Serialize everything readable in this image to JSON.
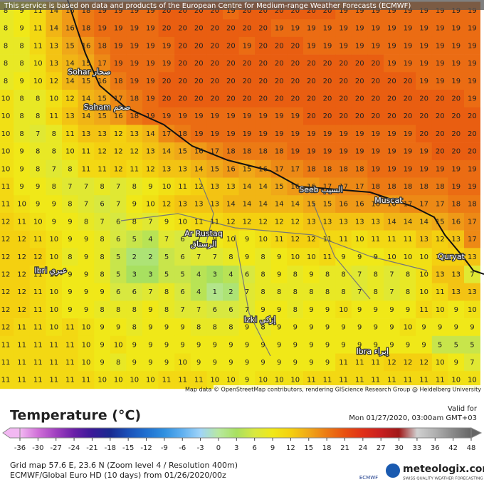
{
  "header": {
    "notice": "This service is based on data and products of the European Centre for Medium-range Weather Forecasts (ECMWF)"
  },
  "map": {
    "attribution": "Map data © OpenStreetMap contributors, rendering GIScience Research Group @ Heidelberg University",
    "places": [
      {
        "label": "Sohar صحار",
        "col": 5.2,
        "row": 3.5
      },
      {
        "label": "Saham صحم",
        "col": 6.3,
        "row": 5.5
      },
      {
        "label": "Ar Rustaq",
        "col": 12.3,
        "row": 12.7
      },
      {
        "label": "الرستاق",
        "col": 12.3,
        "row": 13.3
      },
      {
        "label": "Ibri عبري",
        "col": 2.8,
        "row": 14.8
      },
      {
        "label": "Izki إزكي",
        "col": 15.8,
        "row": 17.6
      },
      {
        "label": "Seeb السيب",
        "col": 19.6,
        "row": 10.2
      },
      {
        "label": "Muscat",
        "col": 23.8,
        "row": 10.8
      },
      {
        "label": "Quryat",
        "col": 27.7,
        "row": 14.0
      },
      {
        "label": "Ibra إبراء",
        "col": 22.8,
        "row": 19.4
      }
    ],
    "rows": [
      [
        8,
        9,
        11,
        14,
        16,
        18,
        19,
        19,
        19,
        19,
        20,
        20,
        20,
        20,
        19,
        20,
        20,
        20,
        20,
        20,
        20,
        19,
        19,
        19,
        19,
        19,
        19,
        19,
        19,
        19
      ],
      [
        8,
        9,
        11,
        14,
        16,
        18,
        19,
        19,
        19,
        19,
        20,
        20,
        20,
        20,
        20,
        20,
        20,
        19,
        19,
        19,
        19,
        19,
        19,
        19,
        19,
        19,
        19,
        19,
        19,
        19
      ],
      [
        8,
        8,
        11,
        13,
        15,
        16,
        18,
        19,
        19,
        19,
        19,
        20,
        20,
        20,
        20,
        19,
        20,
        20,
        20,
        19,
        19,
        19,
        19,
        19,
        19,
        19,
        19,
        19,
        19,
        19
      ],
      [
        8,
        8,
        10,
        13,
        14,
        15,
        17,
        19,
        19,
        19,
        19,
        20,
        20,
        20,
        20,
        20,
        20,
        20,
        20,
        20,
        20,
        20,
        20,
        20,
        19,
        19,
        19,
        19,
        19,
        19
      ],
      [
        8,
        9,
        10,
        12,
        14,
        15,
        16,
        18,
        19,
        19,
        20,
        20,
        20,
        20,
        20,
        20,
        20,
        20,
        20,
        20,
        20,
        20,
        20,
        20,
        20,
        20,
        19,
        19,
        19,
        19
      ],
      [
        10,
        8,
        8,
        10,
        12,
        14,
        15,
        17,
        18,
        19,
        20,
        20,
        20,
        20,
        20,
        20,
        20,
        20,
        20,
        20,
        20,
        20,
        20,
        20,
        20,
        20,
        20,
        20,
        20,
        19
      ],
      [
        10,
        8,
        8,
        11,
        13,
        14,
        15,
        16,
        18,
        19,
        19,
        19,
        19,
        19,
        19,
        19,
        19,
        19,
        19,
        20,
        20,
        20,
        20,
        20,
        20,
        20,
        20,
        20,
        20,
        20
      ],
      [
        10,
        8,
        7,
        8,
        11,
        13,
        13,
        12,
        13,
        14,
        17,
        18,
        19,
        19,
        19,
        19,
        19,
        19,
        19,
        19,
        19,
        19,
        19,
        19,
        19,
        19,
        20,
        20,
        20,
        20
      ],
      [
        10,
        9,
        8,
        8,
        10,
        11,
        12,
        12,
        12,
        13,
        14,
        15,
        16,
        17,
        18,
        18,
        18,
        18,
        19,
        19,
        19,
        19,
        19,
        19,
        19,
        19,
        19,
        20,
        20,
        20
      ],
      [
        10,
        9,
        8,
        7,
        8,
        11,
        11,
        12,
        11,
        12,
        13,
        13,
        14,
        15,
        16,
        15,
        16,
        17,
        17,
        18,
        18,
        18,
        18,
        19,
        19,
        19,
        19,
        19,
        19,
        19
      ],
      [
        11,
        9,
        9,
        8,
        7,
        7,
        8,
        7,
        8,
        9,
        10,
        11,
        12,
        13,
        13,
        14,
        14,
        15,
        16,
        16,
        17,
        17,
        17,
        18,
        18,
        18,
        18,
        18,
        19,
        19
      ],
      [
        11,
        10,
        9,
        9,
        8,
        7,
        6,
        7,
        9,
        10,
        12,
        13,
        13,
        13,
        14,
        14,
        14,
        14,
        14,
        15,
        15,
        16,
        16,
        16,
        16,
        17,
        17,
        17,
        18,
        18
      ],
      [
        12,
        11,
        10,
        9,
        9,
        8,
        7,
        6,
        8,
        7,
        9,
        10,
        11,
        11,
        12,
        12,
        12,
        12,
        12,
        13,
        13,
        13,
        13,
        13,
        14,
        14,
        14,
        15,
        16,
        17
      ],
      [
        12,
        12,
        11,
        10,
        9,
        9,
        8,
        6,
        5,
        4,
        7,
        6,
        7,
        9,
        10,
        9,
        10,
        11,
        12,
        12,
        11,
        11,
        10,
        11,
        11,
        11,
        13,
        12,
        13,
        17
      ],
      [
        12,
        12,
        12,
        10,
        8,
        9,
        8,
        5,
        2,
        2,
        5,
        6,
        7,
        7,
        8,
        9,
        8,
        9,
        10,
        10,
        11,
        9,
        9,
        9,
        10,
        10,
        10,
        12,
        12,
        13
      ],
      [
        12,
        12,
        11,
        10,
        9,
        9,
        8,
        5,
        3,
        3,
        5,
        5,
        4,
        3,
        4,
        6,
        8,
        9,
        8,
        9,
        8,
        8,
        7,
        8,
        7,
        8,
        10,
        13,
        13,
        7
      ],
      [
        12,
        12,
        11,
        10,
        9,
        9,
        9,
        6,
        6,
        7,
        8,
        6,
        4,
        1,
        2,
        7,
        8,
        8,
        8,
        8,
        8,
        8,
        7,
        8,
        7,
        8,
        10,
        11,
        13,
        13
      ],
      [
        12,
        12,
        11,
        10,
        9,
        9,
        8,
        8,
        8,
        9,
        8,
        7,
        7,
        6,
        6,
        7,
        9,
        9,
        8,
        9,
        9,
        10,
        9,
        9,
        9,
        9,
        11,
        10,
        9,
        10
      ],
      [
        12,
        11,
        11,
        10,
        11,
        10,
        9,
        9,
        8,
        9,
        9,
        9,
        8,
        8,
        8,
        9,
        8,
        9,
        9,
        9,
        9,
        9,
        9,
        9,
        9,
        10,
        9,
        9,
        9,
        9
      ],
      [
        11,
        11,
        11,
        11,
        11,
        10,
        9,
        10,
        9,
        9,
        9,
        9,
        9,
        9,
        9,
        9,
        9,
        9,
        9,
        9,
        9,
        9,
        9,
        9,
        9,
        9,
        9,
        5,
        5,
        5
      ],
      [
        11,
        11,
        11,
        11,
        11,
        10,
        9,
        8,
        9,
        9,
        9,
        10,
        9,
        9,
        9,
        9,
        9,
        9,
        9,
        9,
        9,
        11,
        11,
        11,
        12,
        12,
        12,
        10,
        9,
        7
      ],
      [
        11,
        11,
        11,
        11,
        11,
        11,
        10,
        10,
        10,
        10,
        11,
        11,
        11,
        10,
        10,
        9,
        10,
        10,
        10,
        11,
        11,
        11,
        11,
        11,
        11,
        11,
        11,
        11,
        10,
        10
      ]
    ]
  },
  "legend": {
    "title": "Temperature (°C)",
    "valid_label": "Valid for",
    "valid_time": "Mon 01/27/2020, 03:00am GMT+03",
    "ticks": [
      -36,
      -30,
      -27,
      -24,
      -21,
      -18,
      -15,
      -12,
      -9,
      -6,
      -3,
      0,
      3,
      6,
      9,
      12,
      15,
      18,
      21,
      24,
      27,
      30,
      33,
      36,
      42,
      48
    ],
    "colors": [
      "#f2b8f2",
      "#d070d8",
      "#a040c0",
      "#6a20a8",
      "#3a1a98",
      "#1a2a90",
      "#1a50b8",
      "#2070d0",
      "#3090e0",
      "#60b0f0",
      "#a0d4f8",
      "#b8e8a0",
      "#a8e060",
      "#d8e840",
      "#f0e818",
      "#f4d010",
      "#f0a818",
      "#ec7a14",
      "#e85010",
      "#e03018",
      "#c82020",
      "#a01818",
      "#d0d0d0",
      "#b0b0b0",
      "#888888",
      "#666666"
    ]
  },
  "footer": {
    "grid_info": "Grid map 57.6 E, 23.6 N (Zoom level 4 / Resolution 400m)",
    "model": "ECMWF/Global Euro HD (10 days) from  01/26/2020/00z",
    "ecmwf": "ECMWF",
    "brand": "meteologix.com",
    "tagline": "SWISS QUALITY WEATHER FORECASTING"
  }
}
